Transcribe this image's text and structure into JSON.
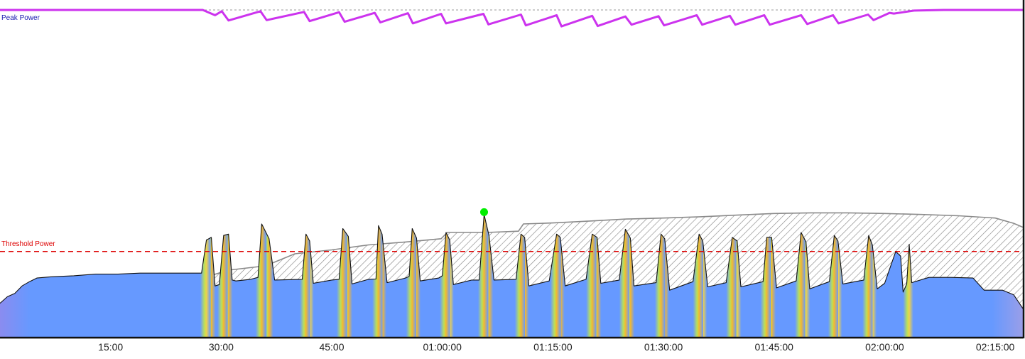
{
  "chart_data": {
    "type": "area",
    "x_unit": "elapsed time (hh:mm:ss)",
    "xlim": [
      "00:00:00",
      "02:18:45"
    ],
    "ylim": [
      0,
      100
    ],
    "x_ticks": [
      "15:00",
      "30:00",
      "45:00",
      "01:00:00",
      "01:15:00",
      "01:30:00",
      "01:45:00",
      "02:00:00",
      "02:15:00"
    ],
    "grid": false,
    "references": [
      {
        "label": "Peak Power",
        "value": 100,
        "color": "#1a1ab0",
        "line_color": "#999999"
      },
      {
        "label": "Threshold Power",
        "value": 26.3,
        "color": "#dd0000"
      }
    ],
    "series": [
      {
        "kind": "peak_power_trace",
        "color": "#cc33ee",
        "points": [
          [
            "00:00:00",
            100
          ],
          [
            "00:27:30",
            100
          ],
          [
            "00:29:10",
            98.4
          ],
          [
            "00:30:05",
            99.6
          ],
          [
            "00:31:00",
            96.8
          ],
          [
            "00:35:20",
            99.6
          ],
          [
            "00:36:10",
            96.9
          ],
          [
            "00:41:15",
            99.4
          ],
          [
            "00:42:00",
            96.6
          ],
          [
            "00:46:00",
            99.3
          ],
          [
            "00:46:45",
            96.4
          ],
          [
            "00:50:50",
            99.1
          ],
          [
            "00:51:35",
            96.2
          ],
          [
            "00:55:20",
            99.0
          ],
          [
            "00:56:00",
            95.9
          ],
          [
            "00:59:50",
            98.8
          ],
          [
            "01:00:30",
            95.9
          ],
          [
            "01:05:35",
            98.8
          ],
          [
            "01:06:15",
            95.6
          ],
          [
            "01:10:40",
            98.6
          ],
          [
            "01:11:20",
            95.3
          ],
          [
            "01:15:30",
            98.4
          ],
          [
            "01:16:10",
            95.0
          ],
          [
            "01:20:20",
            98.2
          ],
          [
            "01:21:05",
            95.1
          ],
          [
            "01:24:50",
            98.0
          ],
          [
            "01:25:40",
            95.5
          ],
          [
            "01:29:20",
            98.1
          ],
          [
            "01:30:05",
            95.3
          ],
          [
            "01:34:30",
            98.4
          ],
          [
            "01:35:15",
            95.5
          ],
          [
            "01:39:00",
            98.2
          ],
          [
            "01:39:45",
            95.5
          ],
          [
            "01:43:40",
            98.4
          ],
          [
            "01:44:25",
            95.5
          ],
          [
            "01:48:40",
            98.4
          ],
          [
            "01:49:30",
            95.7
          ],
          [
            "01:53:00",
            98.4
          ],
          [
            "01:53:45",
            95.9
          ],
          [
            "01:57:45",
            98.6
          ],
          [
            "01:58:30",
            96.9
          ],
          [
            "02:00:40",
            99.1
          ],
          [
            "02:01:15",
            98.9
          ],
          [
            "02:04:00",
            99.8
          ],
          [
            "02:08:00",
            100
          ],
          [
            "02:18:45",
            100
          ]
        ]
      },
      {
        "kind": "upper_envelope",
        "fill": "hatched",
        "points": [
          [
            "00:28:30",
            18.9
          ],
          [
            "00:31:00",
            20.6
          ],
          [
            "00:36:00",
            21.9
          ],
          [
            "00:40:00",
            25.6
          ],
          [
            "00:45:00",
            26.8
          ],
          [
            "00:50:00",
            28.3
          ],
          [
            "00:55:00",
            29.2
          ],
          [
            "00:59:50",
            30.2
          ],
          [
            "01:00:40",
            32.1
          ],
          [
            "01:06:00",
            32.1
          ],
          [
            "01:10:20",
            32.5
          ],
          [
            "01:11:00",
            34.7
          ],
          [
            "01:15:00",
            35.0
          ],
          [
            "01:20:00",
            35.6
          ],
          [
            "01:25:00",
            36.2
          ],
          [
            "01:30:00",
            36.5
          ],
          [
            "01:35:00",
            36.9
          ],
          [
            "01:40:00",
            37.4
          ],
          [
            "01:45:00",
            37.9
          ],
          [
            "01:50:00",
            38.1
          ],
          [
            "01:55:00",
            38.1
          ],
          [
            "02:00:00",
            37.9
          ],
          [
            "02:05:00",
            37.6
          ],
          [
            "02:10:00",
            37.2
          ],
          [
            "02:15:00",
            36.5
          ],
          [
            "02:17:30",
            34.9
          ],
          [
            "02:18:45",
            33.7
          ]
        ]
      },
      {
        "kind": "power_trace",
        "fill": "gradient by intensity",
        "base_color": "#6699ff",
        "points": [
          [
            "00:00:00",
            10.5
          ],
          [
            "00:01:00",
            12.5
          ],
          [
            "00:02:00",
            13.5
          ],
          [
            "00:03:00",
            15.8
          ],
          [
            "00:04:00",
            17.1
          ],
          [
            "00:05:00",
            18.2
          ],
          [
            "00:07:00",
            18.6
          ],
          [
            "00:10:00",
            18.9
          ],
          [
            "00:13:00",
            19.4
          ],
          [
            "00:16:00",
            19.4
          ],
          [
            "00:19:00",
            19.7
          ],
          [
            "00:22:00",
            19.7
          ],
          [
            "00:25:00",
            19.7
          ],
          [
            "00:27:20",
            19.7
          ],
          [
            "00:28:00",
            29.8
          ],
          [
            "00:28:40",
            30.6
          ],
          [
            "00:29:10",
            15.8
          ],
          [
            "00:29:45",
            16.2
          ],
          [
            "00:30:20",
            31.2
          ],
          [
            "00:31:00",
            31.6
          ],
          [
            "00:31:30",
            17.6
          ],
          [
            "00:32:00",
            17.3
          ],
          [
            "00:34:00",
            17.8
          ],
          [
            "00:35:00",
            18.4
          ],
          [
            "00:35:30",
            34.7
          ],
          [
            "00:36:30",
            30.2
          ],
          [
            "00:37:15",
            17.6
          ],
          [
            "00:41:00",
            17.8
          ],
          [
            "00:41:30",
            31.6
          ],
          [
            "00:42:00",
            29.5
          ],
          [
            "00:42:30",
            16.6
          ],
          [
            "00:45:00",
            17.6
          ],
          [
            "00:46:00",
            17.8
          ],
          [
            "00:46:30",
            33.3
          ],
          [
            "00:47:15",
            30.9
          ],
          [
            "00:47:45",
            16.4
          ],
          [
            "00:50:00",
            17.8
          ],
          [
            "00:51:00",
            17.9
          ],
          [
            "00:51:20",
            34.2
          ],
          [
            "00:51:50",
            31.6
          ],
          [
            "00:52:30",
            16.8
          ],
          [
            "00:55:00",
            18.2
          ],
          [
            "00:55:30",
            18.7
          ],
          [
            "00:55:55",
            33.3
          ],
          [
            "00:56:30",
            30.4
          ],
          [
            "00:57:00",
            17.3
          ],
          [
            "00:59:30",
            18.2
          ],
          [
            "01:00:00",
            18.9
          ],
          [
            "01:00:30",
            32.1
          ],
          [
            "01:01:00",
            29.8
          ],
          [
            "01:01:30",
            16.2
          ],
          [
            "01:04:00",
            17.6
          ],
          [
            "01:05:00",
            17.6
          ],
          [
            "01:05:40",
            37.6
          ],
          [
            "01:06:20",
            31.2
          ],
          [
            "01:07:00",
            17.6
          ],
          [
            "01:10:00",
            17.8
          ],
          [
            "01:10:40",
            31.6
          ],
          [
            "01:11:10",
            30.6
          ],
          [
            "01:11:45",
            15.8
          ],
          [
            "01:14:30",
            17.3
          ],
          [
            "01:15:30",
            31.6
          ],
          [
            "01:16:00",
            30.6
          ],
          [
            "01:16:40",
            15.8
          ],
          [
            "01:19:30",
            17.8
          ],
          [
            "01:20:20",
            31.6
          ],
          [
            "01:21:00",
            30.6
          ],
          [
            "01:21:30",
            16.6
          ],
          [
            "01:24:00",
            17.6
          ],
          [
            "01:24:50",
            33.1
          ],
          [
            "01:25:30",
            30.4
          ],
          [
            "01:26:00",
            15.8
          ],
          [
            "01:29:00",
            16.8
          ],
          [
            "01:29:40",
            31.6
          ],
          [
            "01:30:10",
            30.2
          ],
          [
            "01:30:50",
            14.5
          ],
          [
            "01:34:00",
            17.1
          ],
          [
            "01:34:50",
            31.6
          ],
          [
            "01:35:20",
            29.5
          ],
          [
            "01:36:00",
            15.5
          ],
          [
            "01:38:30",
            16.8
          ],
          [
            "01:39:20",
            30.6
          ],
          [
            "01:40:00",
            29.5
          ],
          [
            "01:40:30",
            15.5
          ],
          [
            "01:43:30",
            17.1
          ],
          [
            "01:44:00",
            30.6
          ],
          [
            "01:44:40",
            30.6
          ],
          [
            "01:45:20",
            15.2
          ],
          [
            "01:48:00",
            17.3
          ],
          [
            "01:48:40",
            32.1
          ],
          [
            "01:49:20",
            29.2
          ],
          [
            "01:49:50",
            14.9
          ],
          [
            "01:52:30",
            17.1
          ],
          [
            "01:53:10",
            31.2
          ],
          [
            "01:53:40",
            29.5
          ],
          [
            "01:54:20",
            16.4
          ],
          [
            "01:57:10",
            17.6
          ],
          [
            "01:57:50",
            31.2
          ],
          [
            "01:58:20",
            28.3
          ],
          [
            "01:59:00",
            14.9
          ],
          [
            "02:00:00",
            16.6
          ],
          [
            "02:01:30",
            26.3
          ],
          [
            "02:02:10",
            24.9
          ],
          [
            "02:02:30",
            13.9
          ],
          [
            "02:03:00",
            16.4
          ],
          [
            "02:03:20",
            28.5
          ],
          [
            "02:03:40",
            16.8
          ],
          [
            "02:06:00",
            18.4
          ],
          [
            "02:09:00",
            18.4
          ],
          [
            "02:12:00",
            18.2
          ],
          [
            "02:13:30",
            14.5
          ],
          [
            "02:16:00",
            14.5
          ],
          [
            "02:17:30",
            13.1
          ],
          [
            "02:18:45",
            8.9
          ]
        ]
      }
    ],
    "highlight_point": {
      "x": "01:05:40",
      "y": 38.3,
      "color": "#00ee00"
    }
  }
}
